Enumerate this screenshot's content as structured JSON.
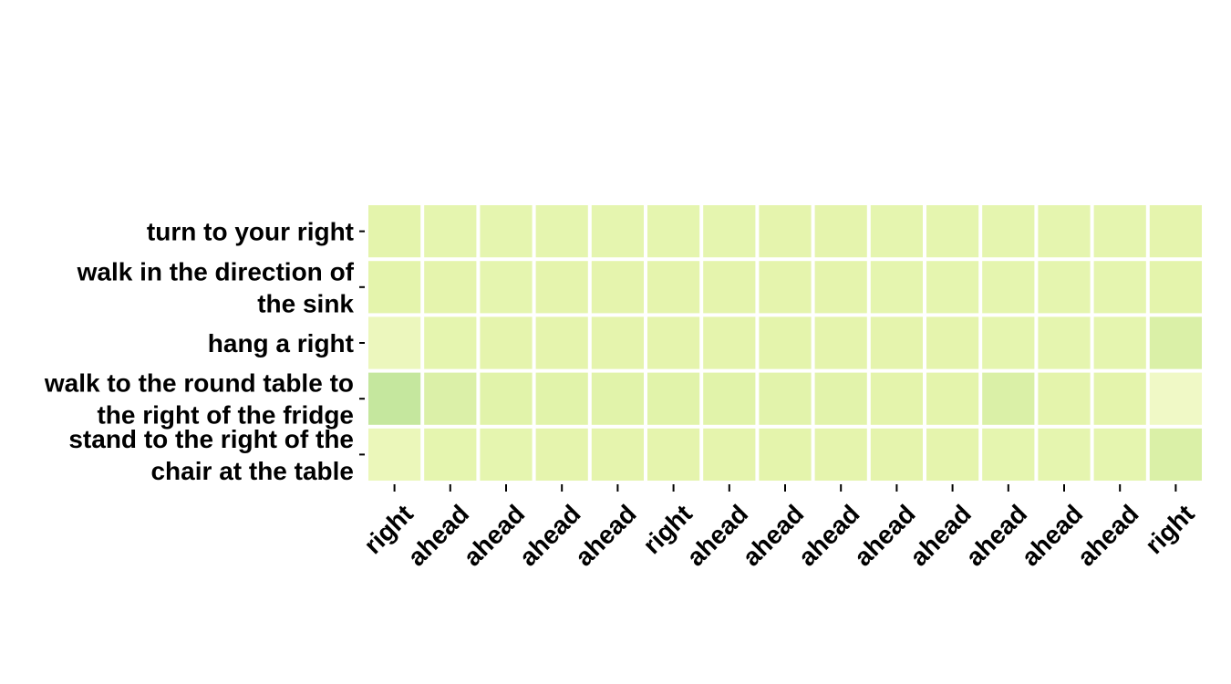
{
  "chart_data": {
    "type": "heatmap",
    "title": "",
    "xlabel": "",
    "ylabel": "",
    "x_tick_labels": [
      "right",
      "ahead",
      "ahead",
      "ahead",
      "ahead",
      "right",
      "ahead",
      "ahead",
      "ahead",
      "ahead",
      "ahead",
      "ahead",
      "ahead",
      "ahead",
      "right"
    ],
    "y_tick_labels": [
      [
        "turn to your right"
      ],
      [
        "walk in the direction of",
        "the sink"
      ],
      [
        "hang a right"
      ],
      [
        "walk to the round table to",
        "the right of the fridge"
      ],
      [
        "stand to the right of the",
        "chair at the table"
      ]
    ],
    "values": [
      [
        0.4,
        0.38,
        0.38,
        0.38,
        0.38,
        0.38,
        0.38,
        0.39,
        0.39,
        0.38,
        0.38,
        0.38,
        0.38,
        0.38,
        0.39
      ],
      [
        0.4,
        0.39,
        0.38,
        0.39,
        0.39,
        0.39,
        0.39,
        0.39,
        0.39,
        0.38,
        0.38,
        0.38,
        0.38,
        0.38,
        0.4
      ],
      [
        0.28,
        0.38,
        0.39,
        0.39,
        0.39,
        0.39,
        0.39,
        0.4,
        0.39,
        0.39,
        0.39,
        0.38,
        0.38,
        0.38,
        0.46
      ],
      [
        0.58,
        0.45,
        0.42,
        0.42,
        0.42,
        0.42,
        0.42,
        0.41,
        0.41,
        0.4,
        0.4,
        0.46,
        0.4,
        0.4,
        0.22
      ],
      [
        0.3,
        0.38,
        0.38,
        0.39,
        0.39,
        0.39,
        0.39,
        0.4,
        0.39,
        0.39,
        0.39,
        0.38,
        0.38,
        0.38,
        0.46
      ]
    ],
    "color_range": [
      0,
      1
    ],
    "colors": {
      "low": "#ffffe5",
      "mid": "#e4f4ac",
      "high": "#7bc87c"
    },
    "grid_line_color": "#ffffff",
    "colorbar": false
  }
}
